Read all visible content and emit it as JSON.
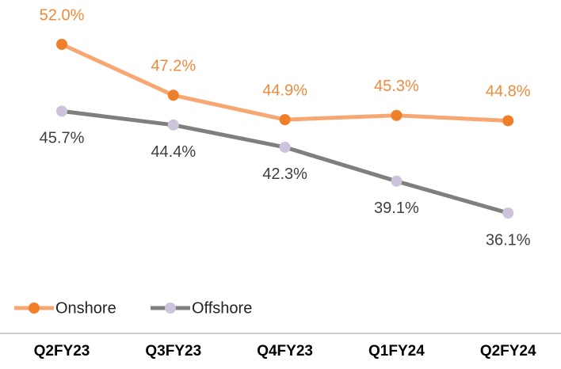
{
  "chart_data": {
    "type": "line",
    "categories": [
      "Q2FY23",
      "Q3FY23",
      "Q4FY23",
      "Q1FY24",
      "Q2FY24"
    ],
    "series": [
      {
        "name": "Onshore",
        "color": "#f7a872",
        "marker_color": "#f07f2a",
        "label_color": "#f08a3c",
        "values": [
          52.0,
          47.2,
          44.9,
          45.3,
          44.8
        ],
        "value_labels": [
          "52.0%",
          "47.2%",
          "44.9%",
          "45.3%",
          "44.8%"
        ]
      },
      {
        "name": "Offshore",
        "color": "#7f7f7f",
        "marker_color": "#cdc3dc",
        "label_color": "#404040",
        "values": [
          45.7,
          44.4,
          42.3,
          39.1,
          36.1
        ],
        "value_labels": [
          "45.7%",
          "44.4%",
          "42.3%",
          "39.1%",
          "36.1%"
        ]
      }
    ]
  }
}
